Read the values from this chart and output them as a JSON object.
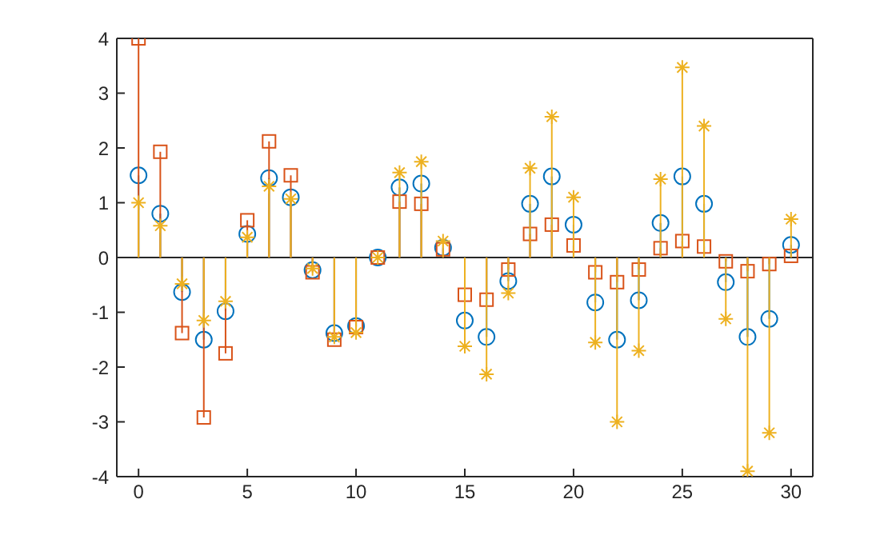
{
  "chart_data": {
    "type": "lollipop",
    "x": [
      0,
      1,
      2,
      3,
      4,
      5,
      6,
      7,
      8,
      9,
      10,
      11,
      12,
      13,
      14,
      15,
      16,
      17,
      18,
      19,
      20,
      21,
      22,
      23,
      24,
      25,
      26,
      27,
      28,
      29,
      30
    ],
    "xlim": [
      -1,
      31
    ],
    "xticks": [
      0,
      5,
      10,
      15,
      20,
      25,
      30
    ],
    "ylim": [
      -4,
      4
    ],
    "yticks": [
      -4,
      -3,
      -2,
      -1,
      0,
      1,
      2,
      3,
      4
    ],
    "ref_lines": [
      {
        "axis": "y",
        "value": 0,
        "color": "#262626"
      }
    ],
    "series": [
      {
        "color": "#0072bd",
        "marker": "circle",
        "values": [
          1.5,
          0.8,
          -0.63,
          -1.5,
          -0.98,
          0.43,
          1.45,
          1.1,
          -0.23,
          -1.38,
          -1.25,
          0,
          1.28,
          1.35,
          0.18,
          -1.15,
          -1.45,
          -0.43,
          0.98,
          1.48,
          0.6,
          -0.82,
          -1.5,
          -0.78,
          0.63,
          1.48,
          0.98,
          -0.45,
          -1.45,
          -1.12,
          0.23
        ]
      },
      {
        "color": "#d95319",
        "marker": "square",
        "values": [
          4,
          1.93,
          -1.38,
          -2.92,
          -1.75,
          0.68,
          2.12,
          1.5,
          -0.27,
          -1.5,
          -1.27,
          0,
          1.02,
          0.98,
          0.15,
          -0.68,
          -0.77,
          -0.22,
          0.43,
          0.6,
          0.22,
          -0.27,
          -0.45,
          -0.22,
          0.17,
          0.3,
          0.2,
          -0.07,
          -0.25,
          -0.12,
          0.03
        ]
      },
      {
        "color": "#edb120",
        "marker": "cross",
        "values": [
          1,
          0.58,
          -0.48,
          -1.15,
          -0.8,
          0.37,
          1.3,
          1.07,
          -0.2,
          -1.45,
          -1.37,
          0,
          1.55,
          1.75,
          0.3,
          -1.62,
          -2.13,
          -0.65,
          1.63,
          2.57,
          1.1,
          -1.55,
          -3,
          -1.7,
          1.43,
          3.47,
          2.4,
          -1.12,
          -3.9,
          -3.2,
          0.7
        ]
      }
    ]
  }
}
